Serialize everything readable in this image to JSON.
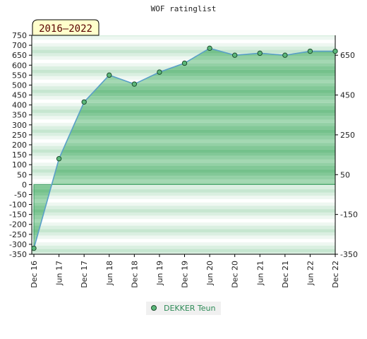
{
  "chart_data": {
    "type": "area",
    "title": "WOF ratinglist",
    "period_badge": "2016–2022",
    "x_labels": [
      "Dec 16",
      "Jun 17",
      "Dec 17",
      "Jun 18",
      "Dec 18",
      "Jun 19",
      "Dec 19",
      "Jun 20",
      "Dec 20",
      "Jun 21",
      "Dec 21",
      "Jun 22",
      "Dec 22"
    ],
    "y_ticks_left": [
      750,
      700,
      650,
      600,
      550,
      500,
      450,
      400,
      350,
      300,
      250,
      200,
      150,
      100,
      50,
      0,
      -50,
      -100,
      -150,
      -200,
      -250,
      -300,
      -350
    ],
    "y_ticks_right": [
      650,
      450,
      250,
      50,
      -150,
      -350
    ],
    "ylim": [
      -350,
      750
    ],
    "grid": false,
    "legend_position": "bottom-center",
    "series": [
      {
        "name": "DEKKER Teun",
        "color": "#2e8b57",
        "values": [
          -320,
          130,
          415,
          550,
          505,
          565,
          610,
          685,
          650,
          660,
          650,
          670,
          670
        ]
      }
    ]
  }
}
